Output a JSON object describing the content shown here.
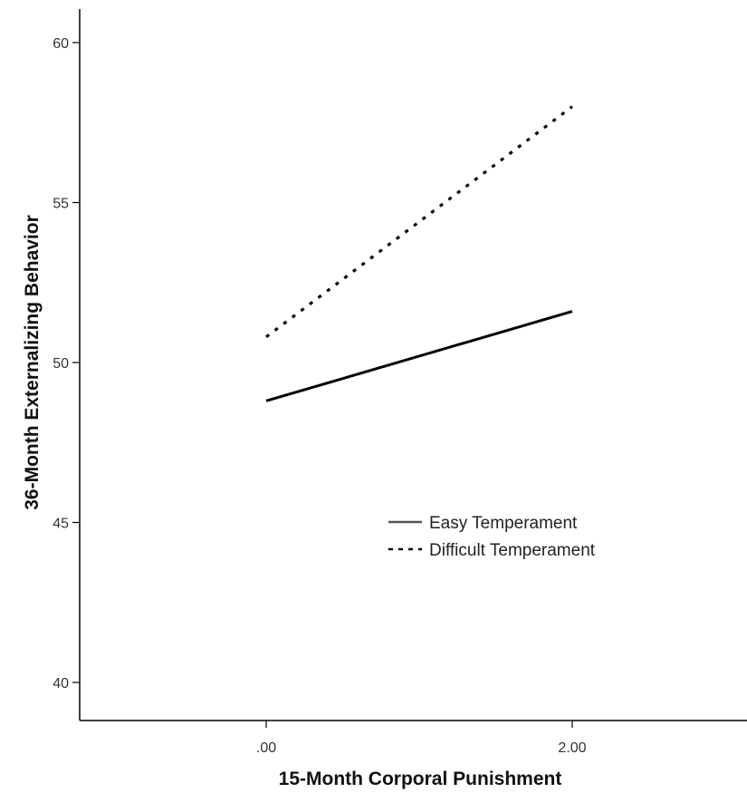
{
  "chart_data": {
    "type": "line",
    "x": [
      0,
      2
    ],
    "xticks": [
      ".00",
      "2.00"
    ],
    "xlim": [
      -0.6,
      3.0
    ],
    "ylim": [
      39,
      61
    ],
    "yticks": [
      "40",
      "45",
      "50",
      "55",
      "60"
    ],
    "ytick_values": [
      40,
      45,
      50,
      55,
      60
    ],
    "xlabel": "15-Month Corporal Punishment",
    "ylabel": "36-Month Externalizing Behavior",
    "series": [
      {
        "name": "Easy Temperament",
        "values": [
          48.8,
          51.6
        ],
        "style": "solid",
        "color": "#000000"
      },
      {
        "name": "Difficult Temperament",
        "values": [
          50.8,
          58.0
        ],
        "style": "dotted",
        "color": "#000000"
      }
    ],
    "legend_position": "center-right",
    "grid": false
  }
}
